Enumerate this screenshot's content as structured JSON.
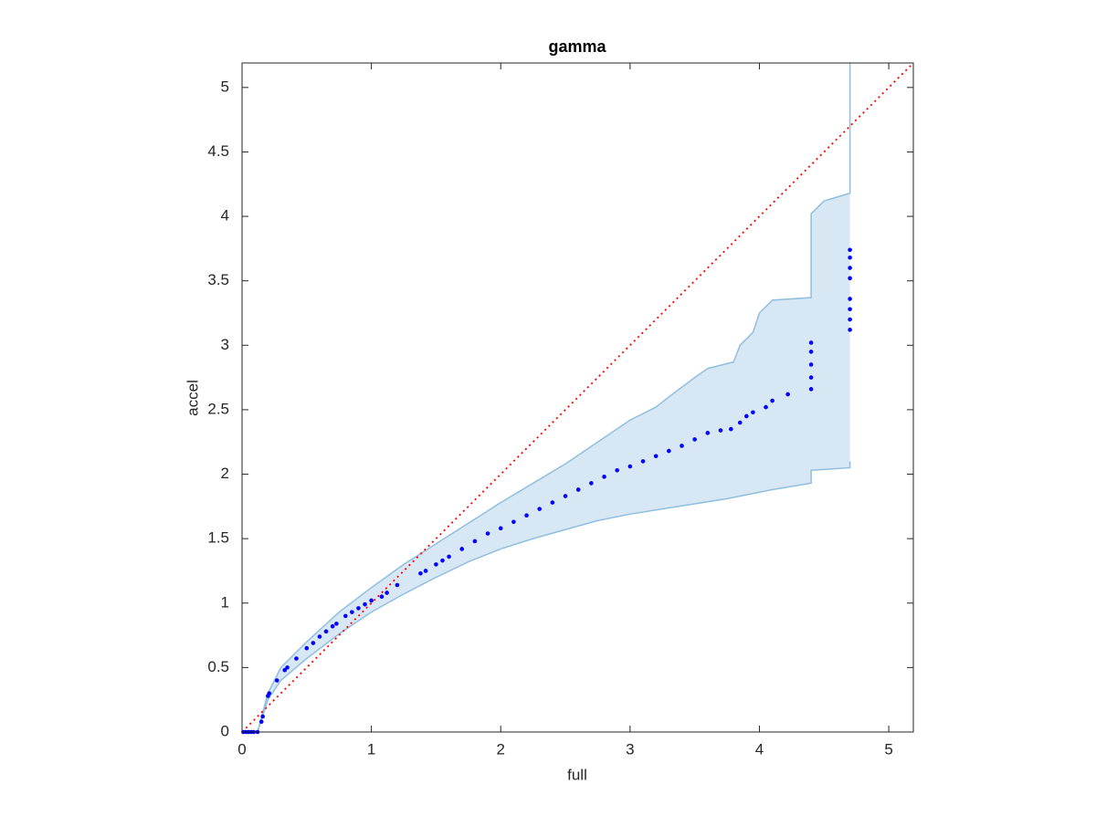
{
  "chart_data": {
    "type": "scatter",
    "title": "gamma",
    "xlabel": "full",
    "ylabel": "accel",
    "xlim": [
      0,
      5.19
    ],
    "ylim": [
      0,
      5.19
    ],
    "xticks": [
      0,
      1,
      2,
      3,
      4,
      5
    ],
    "yticks": [
      0,
      0.5,
      1,
      1.5,
      2,
      2.5,
      3,
      3.5,
      4,
      4.5,
      5
    ],
    "grid": false,
    "series": [
      {
        "color": "#0000ff",
        "x": [
          0.01,
          0.03,
          0.05,
          0.07,
          0.09,
          0.12,
          0.15,
          0.16,
          0.2,
          0.21,
          0.27,
          0.33,
          0.35,
          0.42,
          0.5,
          0.55,
          0.6,
          0.65,
          0.7,
          0.73,
          0.8,
          0.85,
          0.9,
          0.95,
          1.0,
          1.08,
          1.12,
          1.2,
          1.38,
          1.42,
          1.5,
          1.55,
          1.6,
          1.7,
          1.8,
          1.9,
          2.0,
          2.1,
          2.2,
          2.3,
          2.4,
          2.5,
          2.6,
          2.7,
          2.8,
          2.9,
          3.0,
          3.1,
          3.2,
          3.3,
          3.4,
          3.5,
          3.6,
          3.7,
          3.78,
          3.85,
          3.9,
          3.95,
          4.05,
          4.1,
          4.22,
          4.4,
          4.4,
          4.4,
          4.4,
          4.4,
          4.7,
          4.7,
          4.7,
          4.7,
          4.7,
          4.7,
          4.7,
          4.7
        ],
        "values": [
          0,
          0,
          0,
          0,
          0,
          0,
          0.08,
          0.12,
          0.28,
          0.3,
          0.4,
          0.48,
          0.5,
          0.57,
          0.65,
          0.69,
          0.74,
          0.78,
          0.82,
          0.84,
          0.9,
          0.93,
          0.96,
          0.99,
          1.02,
          1.05,
          1.08,
          1.14,
          1.23,
          1.25,
          1.3,
          1.33,
          1.36,
          1.42,
          1.48,
          1.54,
          1.58,
          1.63,
          1.68,
          1.73,
          1.78,
          1.83,
          1.88,
          1.93,
          1.98,
          2.03,
          2.06,
          2.1,
          2.14,
          2.18,
          2.22,
          2.27,
          2.32,
          2.34,
          2.35,
          2.4,
          2.45,
          2.48,
          2.52,
          2.57,
          2.62,
          2.66,
          2.75,
          2.85,
          2.95,
          3.02,
          3.12,
          3.2,
          3.28,
          3.36,
          3.52,
          3.6,
          3.68,
          3.74
        ]
      }
    ],
    "band": {
      "color": "#8fbfdf",
      "fill": "#d7e7f4",
      "upper": {
        "x": [
          0,
          0.12,
          0.2,
          0.3,
          0.5,
          0.75,
          1.0,
          1.25,
          1.5,
          1.75,
          2.0,
          2.25,
          2.5,
          2.75,
          3.0,
          3.2,
          3.3,
          3.5,
          3.6,
          3.8,
          3.85,
          3.95,
          4.0,
          4.1,
          4.4,
          4.4,
          4.5,
          4.7,
          4.7
        ],
        "values": [
          0,
          0,
          0.3,
          0.5,
          0.7,
          0.93,
          1.12,
          1.3,
          1.46,
          1.62,
          1.78,
          1.93,
          2.08,
          2.25,
          2.42,
          2.52,
          2.6,
          2.75,
          2.82,
          2.87,
          3.0,
          3.1,
          3.25,
          3.35,
          3.37,
          4.02,
          4.12,
          4.18,
          5.19
        ]
      },
      "lower": {
        "x": [
          0,
          0.12,
          0.2,
          0.3,
          0.5,
          0.75,
          1.0,
          1.25,
          1.5,
          1.75,
          2.0,
          2.25,
          2.5,
          2.75,
          3.0,
          3.25,
          3.5,
          3.75,
          3.9,
          4.1,
          4.4,
          4.4,
          4.7,
          4.7
        ],
        "values": [
          0,
          0,
          0.25,
          0.4,
          0.57,
          0.76,
          0.93,
          1.07,
          1.2,
          1.32,
          1.42,
          1.5,
          1.57,
          1.64,
          1.69,
          1.73,
          1.77,
          1.81,
          1.84,
          1.88,
          1.93,
          2.03,
          2.05,
          2.1
        ]
      }
    },
    "reference_line": {
      "color": "#ff0000",
      "x": [
        0,
        5.19
      ],
      "values": [
        0,
        5.19
      ]
    }
  }
}
